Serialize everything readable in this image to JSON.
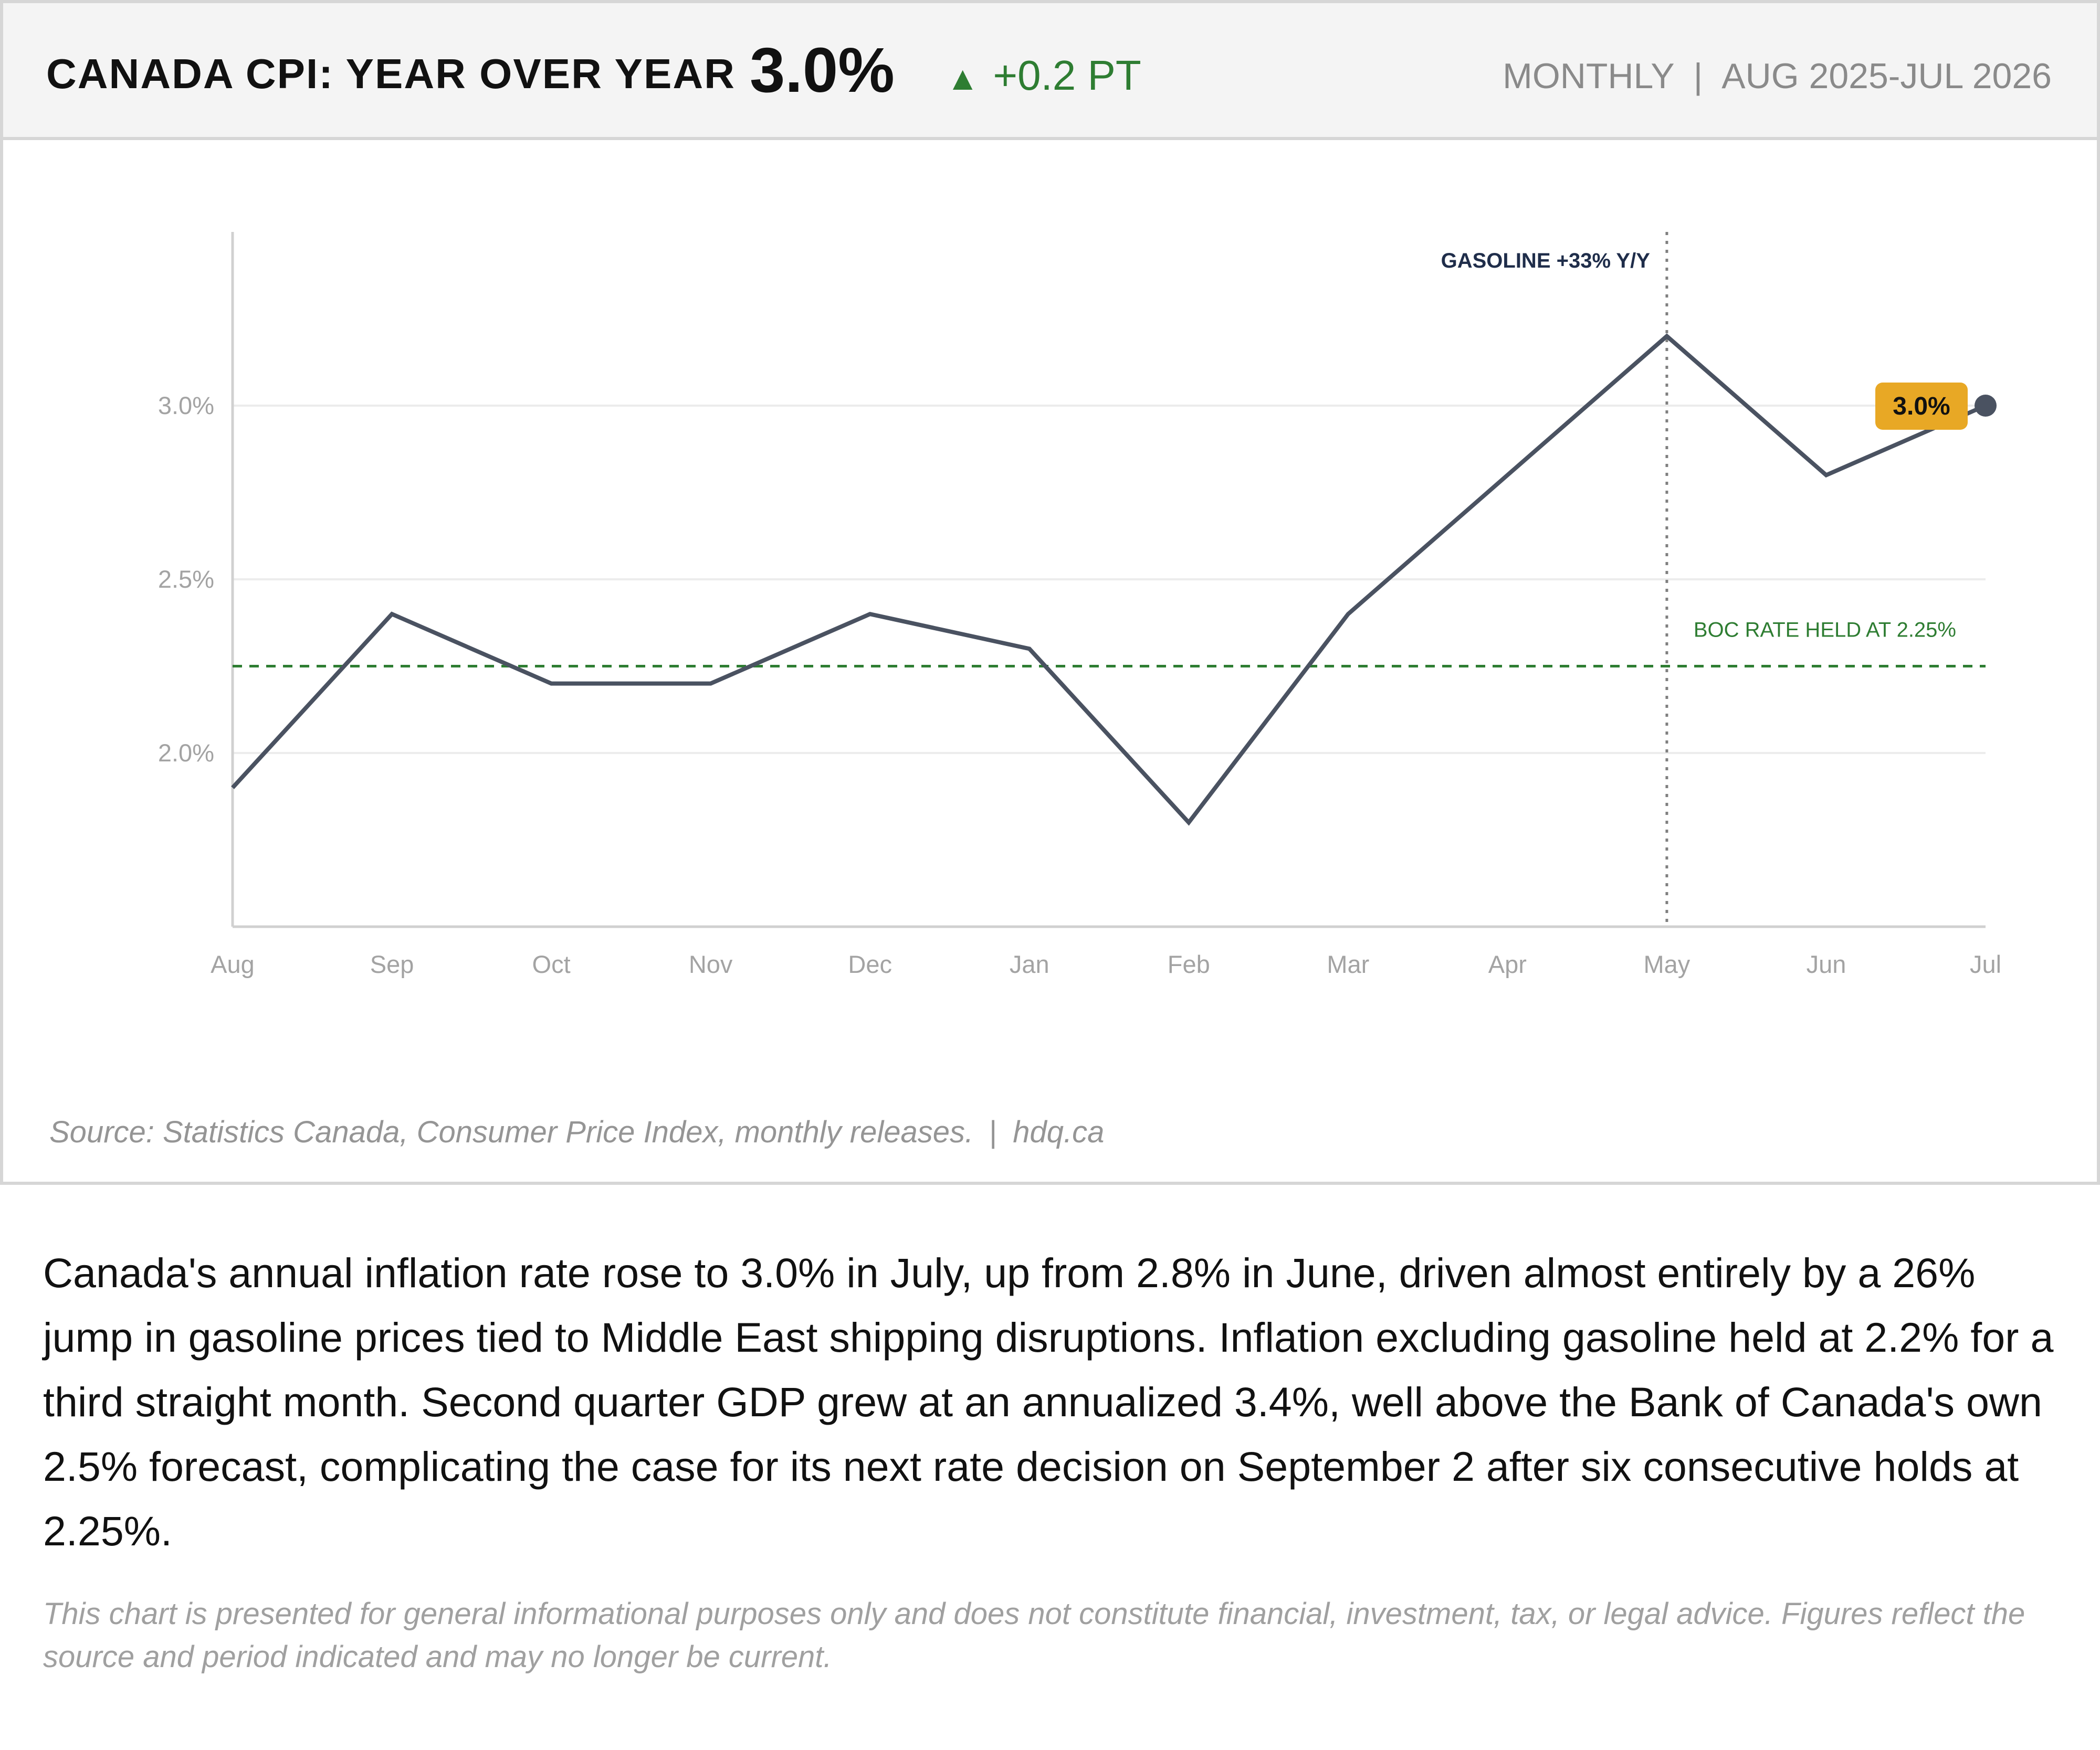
{
  "header": {
    "title": "CANADA CPI: YEAR OVER YEAR",
    "value": "3.0%",
    "change_arrow": "▲",
    "change": "+0.2 PT",
    "frequency": "MONTHLY",
    "separator": "|",
    "period": "AUG 2025-JUL 2026"
  },
  "colors": {
    "line": "#4a5261",
    "accent_green": "#2e7d32",
    "badge": "#e8a825",
    "annotation_navy": "#1f2d4a"
  },
  "chart_data": {
    "type": "line",
    "title": "CANADA CPI: YEAR OVER YEAR",
    "xlabel": "",
    "ylabel": "",
    "x": [
      "Aug",
      "Sep",
      "Oct",
      "Nov",
      "Dec",
      "Jan",
      "Feb",
      "Mar",
      "Apr",
      "May",
      "Jun",
      "Jul"
    ],
    "values": [
      1.9,
      2.4,
      2.2,
      2.2,
      2.4,
      2.3,
      1.8,
      2.4,
      2.8,
      3.2,
      2.8,
      3.0
    ],
    "ylim": [
      1.5,
      3.5
    ],
    "yticks": [
      2.0,
      2.5,
      3.0
    ],
    "ytick_labels": [
      "2.0%",
      "2.5%",
      "3.0%"
    ],
    "grid": true,
    "reference_line": {
      "value": 2.25,
      "label": "BOC RATE HELD AT 2.25%"
    },
    "event_marker": {
      "x": "May",
      "label": "GASOLINE +33% Y/Y"
    },
    "end_label": "3.0%"
  },
  "source": {
    "text": "Source: Statistics Canada, Consumer Price Index, monthly releases.",
    "separator": "|",
    "site": "hdq.ca"
  },
  "summary": "Canada's annual inflation rate rose to 3.0% in July, up from 2.8% in June, driven almost entirely by a 26% jump in gasoline prices tied to Middle East shipping disruptions. Inflation excluding gasoline held at 2.2% for a third straight month. Second quarter GDP grew at an annualized 3.4%, well above the Bank of Canada's own 2.5% forecast, complicating the case for its next rate decision on September 2 after six consecutive holds at 2.25%.",
  "disclaimer": "This chart is presented for general informational purposes only and does not constitute financial, investment, tax, or legal advice. Figures reflect the source and period indicated and may no longer be current."
}
